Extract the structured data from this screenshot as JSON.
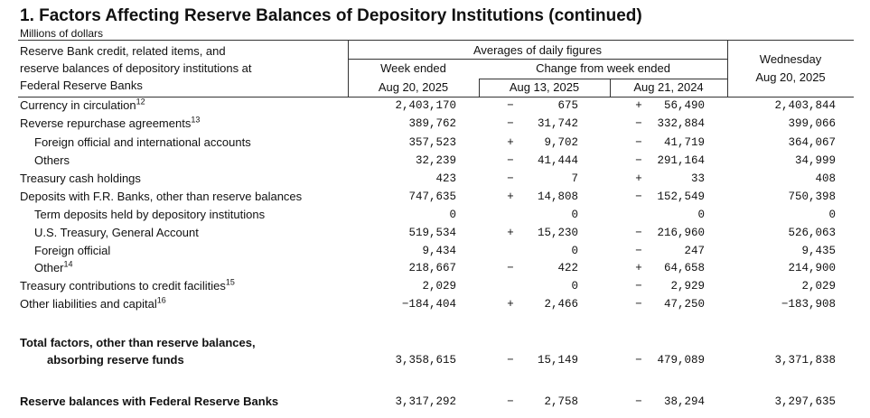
{
  "header": {
    "title": "1. Factors Affecting Reserve Balances of Depository Institutions (continued)",
    "units": "Millions of dollars"
  },
  "table": {
    "stub_heading": [
      "Reserve Bank credit, related items, and",
      "reserve balances of depository institutions at",
      "Federal Reserve Banks"
    ],
    "averages_heading": "Averages of daily figures",
    "week_ended_heading": [
      "Week ended",
      "Aug 20, 2025"
    ],
    "change_heading": "Change from week ended",
    "change_columns": [
      "Aug 13, 2025",
      "Aug 21, 2024"
    ],
    "wednesday_heading": [
      "Wednesday",
      "Aug 20, 2025"
    ],
    "rows": [
      {
        "label": "Currency in circulation",
        "note": "12",
        "week": "2,403,170",
        "sign1": "−",
        "chg1": "675",
        "sign2": "+",
        "chg2": "56,490",
        "wed": "2,403,844"
      },
      {
        "label": "Reverse repurchase agreements",
        "note": "13",
        "week": "389,762",
        "sign1": "−",
        "chg1": "31,742",
        "sign2": "−",
        "chg2": "332,884",
        "wed": "399,066"
      },
      {
        "label": "Foreign official and international accounts",
        "indent": true,
        "week": "357,523",
        "sign1": "+",
        "chg1": "9,702",
        "sign2": "−",
        "chg2": "41,719",
        "wed": "364,067"
      },
      {
        "label": "Others",
        "indent": true,
        "week": "32,239",
        "sign1": "−",
        "chg1": "41,444",
        "sign2": "−",
        "chg2": "291,164",
        "wed": "34,999"
      },
      {
        "label": "Treasury cash holdings",
        "week": "423",
        "sign1": "−",
        "chg1": "7",
        "sign2": "+",
        "chg2": "33",
        "wed": "408"
      },
      {
        "label": "Deposits with F.R. Banks, other than reserve balances",
        "week": "747,635",
        "sign1": "+",
        "chg1": "14,808",
        "sign2": "−",
        "chg2": "152,549",
        "wed": "750,398"
      },
      {
        "label": "Term deposits held by depository institutions",
        "indent": true,
        "week": "0",
        "chg1": "0",
        "chg2": "0",
        "wed": "0"
      },
      {
        "label": "U.S. Treasury, General Account",
        "indent": true,
        "week": "519,534",
        "sign1": "+",
        "chg1": "15,230",
        "sign2": "−",
        "chg2": "216,960",
        "wed": "526,063"
      },
      {
        "label": "Foreign official",
        "indent": true,
        "week": "9,434",
        "chg1": "0",
        "sign2": "−",
        "chg2": "247",
        "wed": "9,435"
      },
      {
        "label": "Other",
        "note": "14",
        "indent": true,
        "week": "218,667",
        "sign1": "−",
        "chg1": "422",
        "sign2": "+",
        "chg2": "64,658",
        "wed": "214,900"
      },
      {
        "label": "Treasury contributions to credit facilities",
        "note": "15",
        "week": "2,029",
        "chg1": "0",
        "sign2": "−",
        "chg2": "2,929",
        "wed": "2,029"
      },
      {
        "label": "Other liabilities and capital",
        "note": "16",
        "week": "−184,404",
        "sign1": "+",
        "chg1": "2,466",
        "sign2": "−",
        "chg2": "47,250",
        "wed": "−183,908"
      }
    ],
    "total": {
      "label": [
        "Total factors, other than reserve balances,",
        "absorbing reserve funds"
      ],
      "week": "3,358,615",
      "sign1": "−",
      "chg1": "15,149",
      "sign2": "−",
      "chg2": "479,089",
      "wed": "3,371,838"
    },
    "reserve_balances": {
      "label": "Reserve balances with Federal Reserve Banks",
      "week": "3,317,292",
      "sign1": "−",
      "chg1": "2,758",
      "sign2": "−",
      "chg2": "38,294",
      "wed": "3,297,635"
    }
  }
}
